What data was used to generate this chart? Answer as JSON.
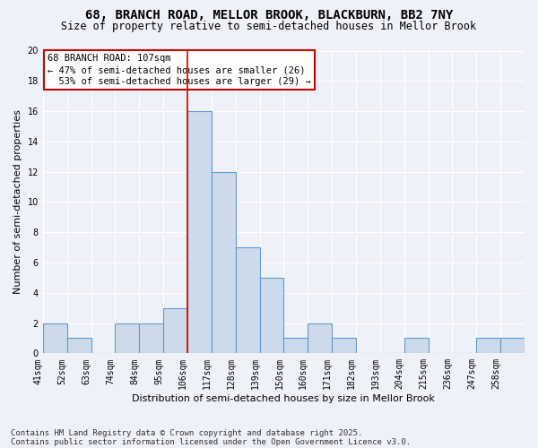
{
  "title": "68, BRANCH ROAD, MELLOR BROOK, BLACKBURN, BB2 7NY",
  "subtitle": "Size of property relative to semi-detached houses in Mellor Brook",
  "xlabel": "Distribution of semi-detached houses by size in Mellor Brook",
  "ylabel": "Number of semi-detached properties",
  "footer1": "Contains HM Land Registry data © Crown copyright and database right 2025.",
  "footer2": "Contains public sector information licensed under the Open Government Licence v3.0.",
  "property_label": "68 BRANCH ROAD: 107sqm",
  "pct_smaller": 47,
  "count_smaller": 26,
  "pct_larger": 53,
  "count_larger": 29,
  "bin_labels": [
    "41sqm",
    "52sqm",
    "63sqm",
    "74sqm",
    "84sqm",
    "95sqm",
    "106sqm",
    "117sqm",
    "128sqm",
    "139sqm",
    "150sqm",
    "160sqm",
    "171sqm",
    "182sqm",
    "193sqm",
    "204sqm",
    "215sqm",
    "236sqm",
    "247sqm",
    "258sqm"
  ],
  "bar_heights": [
    2,
    1,
    0,
    2,
    2,
    3,
    16,
    12,
    7,
    5,
    1,
    2,
    1,
    0,
    0,
    1,
    0,
    0,
    1,
    1
  ],
  "vline_bin": 6,
  "bar_color": "#ccdaeb",
  "bar_edge_color": "#6699cc",
  "vline_color": "#cc0000",
  "box_edge_color": "#cc0000",
  "ylim": [
    0,
    20
  ],
  "yticks": [
    0,
    2,
    4,
    6,
    8,
    10,
    12,
    14,
    16,
    18,
    20
  ],
  "bg_color": "#eef2f8",
  "grid_color": "#ffffff",
  "title_fontsize": 10,
  "subtitle_fontsize": 8.5,
  "axis_label_fontsize": 8,
  "tick_fontsize": 7,
  "legend_fontsize": 7.5,
  "footer_fontsize": 6.5
}
